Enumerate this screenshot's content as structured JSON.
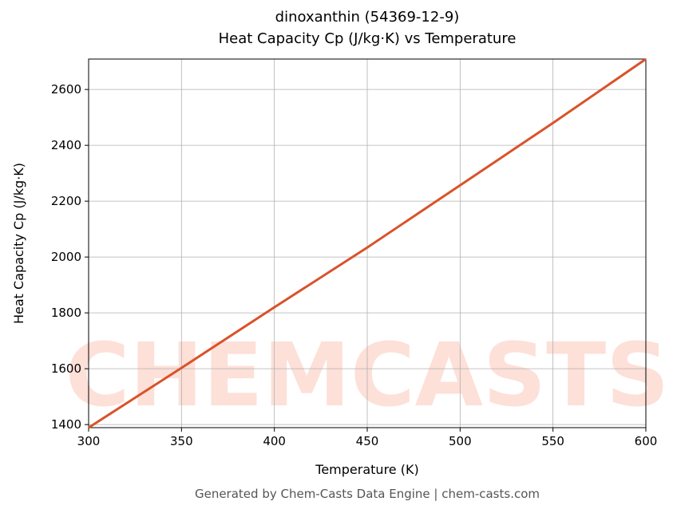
{
  "chart_data": {
    "type": "line",
    "title": "dinoxanthin (54369-12-9)",
    "subtitle": "Heat Capacity Cp (J/kg·K) vs Temperature",
    "x_label": "Temperature (K)",
    "y_label": "Heat Capacity Cp (J/kg·K)",
    "footer": "Generated by Chem-Casts Data Engine | chem-casts.com",
    "watermark": "CHEMCASTS",
    "x": [
      300,
      350,
      400,
      450,
      500,
      550,
      600
    ],
    "series": [
      {
        "name": "Cp",
        "color": "#d9532a",
        "values": [
          1389,
          1603,
          1820,
          2034,
          2257,
          2480,
          2709
        ]
      }
    ],
    "xlim": [
      300,
      600
    ],
    "xticks": [
      300,
      350,
      400,
      450,
      500,
      550,
      600
    ],
    "ylim": [
      1389,
      2709
    ],
    "yticks": [
      1400,
      1600,
      1800,
      2000,
      2200,
      2400,
      2600
    ],
    "grid": true
  }
}
